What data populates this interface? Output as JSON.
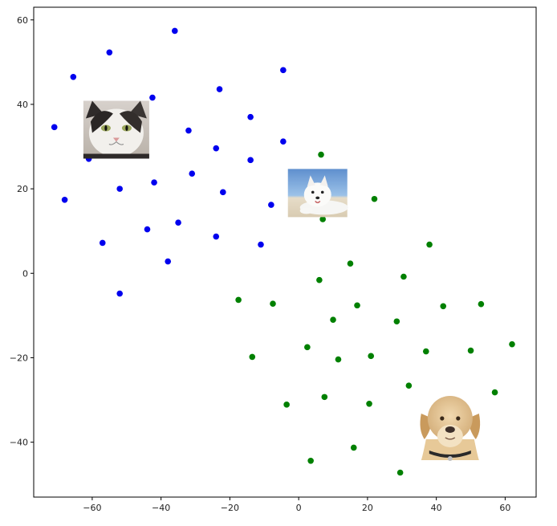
{
  "chart_data": {
    "type": "scatter",
    "title": "",
    "xlabel": "",
    "ylabel": "",
    "xlim": [
      -77,
      69
    ],
    "ylim": [
      -53,
      63
    ],
    "grid": false,
    "legend": "none",
    "xticks": [
      -60,
      -40,
      -20,
      0,
      20,
      40,
      60
    ],
    "yticks": [
      -40,
      -20,
      0,
      20,
      40,
      60
    ],
    "xtick_labels": [
      "−60",
      "−40",
      "−20",
      "0",
      "20",
      "40",
      "60"
    ],
    "ytick_labels": [
      "−40",
      "−20",
      "0",
      "20",
      "40",
      "60"
    ],
    "series": [
      {
        "color": "#0000ee",
        "points": [
          [
            -36,
            57.4
          ],
          [
            -55,
            52.3
          ],
          [
            -65.5,
            46.5
          ],
          [
            -4.5,
            48.1
          ],
          [
            -23,
            43.6
          ],
          [
            -42.5,
            41.6
          ],
          [
            -14,
            37
          ],
          [
            -71,
            34.6
          ],
          [
            -32,
            33.8
          ],
          [
            -45,
            31.2
          ],
          [
            -4.5,
            31.2
          ],
          [
            -24,
            29.6
          ],
          [
            -61,
            27.1
          ],
          [
            -14,
            26.8
          ],
          [
            -31,
            23.6
          ],
          [
            -42,
            21.5
          ],
          [
            -52,
            20
          ],
          [
            -22,
            19.2
          ],
          [
            -68,
            17.4
          ],
          [
            -8,
            16.2
          ],
          [
            -35,
            12
          ],
          [
            -44,
            10.4
          ],
          [
            -24,
            8.7
          ],
          [
            -57,
            7.2
          ],
          [
            -11,
            6.8
          ],
          [
            -38,
            2.8
          ],
          [
            -52,
            -4.8
          ]
        ]
      },
      {
        "color": "#008000",
        "points": [
          [
            6.5,
            28.1
          ],
          [
            22,
            17.6
          ],
          [
            7,
            12.8
          ],
          [
            38,
            6.8
          ],
          [
            15,
            2.3
          ],
          [
            30.5,
            -0.8
          ],
          [
            6,
            -1.6
          ],
          [
            -17.5,
            -6.3
          ],
          [
            -7.5,
            -7.2
          ],
          [
            17,
            -7.6
          ],
          [
            42,
            -7.8
          ],
          [
            53,
            -7.3
          ],
          [
            10,
            -11
          ],
          [
            28.5,
            -11.4
          ],
          [
            62,
            -16.8
          ],
          [
            2.5,
            -17.5
          ],
          [
            37,
            -18.5
          ],
          [
            50,
            -18.3
          ],
          [
            -13.5,
            -19.8
          ],
          [
            21,
            -19.6
          ],
          [
            11.5,
            -20.4
          ],
          [
            32,
            -26.6
          ],
          [
            57,
            -28.2
          ],
          [
            7.5,
            -29.3
          ],
          [
            -3.5,
            -31.1
          ],
          [
            20.5,
            -30.9
          ],
          [
            16,
            -41.3
          ],
          [
            3.5,
            -44.4
          ],
          [
            29.5,
            -47.2
          ]
        ]
      }
    ],
    "images": [
      {
        "icon": "cat-face-photo",
        "at": [
          -53,
          34
        ]
      },
      {
        "icon": "white-dog-photo",
        "at": [
          5.5,
          19
        ]
      },
      {
        "icon": "labrador-photo",
        "at": [
          44,
          -35.5
        ]
      }
    ]
  }
}
